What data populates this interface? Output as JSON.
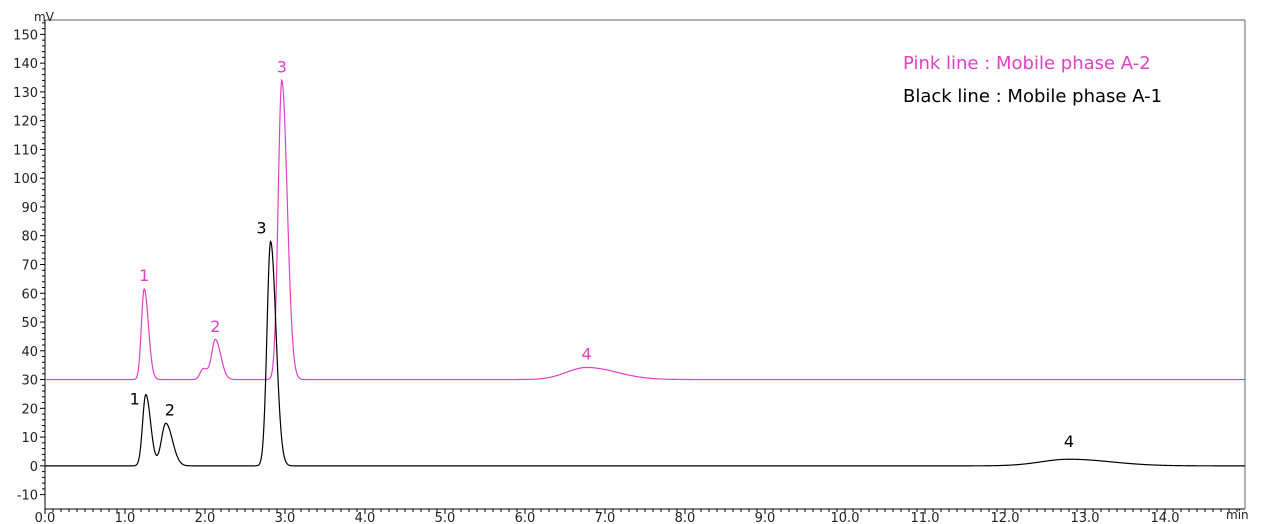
{
  "chart_data": {
    "type": "line",
    "title": "",
    "xlabel": "min",
    "ylabel": "mV",
    "xlim": [
      0.0,
      15.0
    ],
    "ylim": [
      -15,
      155
    ],
    "grid": false,
    "x_ticks": [
      "0.0",
      "1.0",
      "2.0",
      "3.0",
      "4.0",
      "5.0",
      "6.0",
      "7.0",
      "8.0",
      "9.0",
      "10.0",
      "11.0",
      "12.0",
      "13.0",
      "14.0"
    ],
    "y_ticks": [
      "-10",
      "0",
      "10",
      "20",
      "30",
      "40",
      "50",
      "60",
      "70",
      "80",
      "90",
      "100",
      "110",
      "120",
      "130",
      "140",
      "150"
    ],
    "legend": {
      "placement": "top-right",
      "entries": [
        {
          "text": "Pink line : Mobile phase A-2",
          "color": "#e040c8"
        },
        {
          "text": "Black line : Mobile phase A-1",
          "color": "#000000"
        }
      ]
    },
    "series": [
      {
        "color": "#e040c8",
        "baseline": 30,
        "peaks": [
          {
            "label": "1",
            "x": 1.24,
            "height": 61.5,
            "width": 0.035
          },
          {
            "label": "",
            "x": 1.98,
            "height": 33.8,
            "width": 0.04
          },
          {
            "label": "2",
            "x": 2.13,
            "height": 43.8,
            "width": 0.045
          },
          {
            "label": "3",
            "x": 2.96,
            "height": 134.0,
            "width": 0.045
          },
          {
            "label": "4",
            "x": 6.77,
            "height": 34.2,
            "width": 0.25
          }
        ]
      },
      {
        "color": "#000000",
        "baseline": 0,
        "peaks": [
          {
            "label": "1",
            "x": 1.26,
            "height": 24.8,
            "width": 0.04
          },
          {
            "label": "2",
            "x": 1.51,
            "height": 14.8,
            "width": 0.055
          },
          {
            "label": "3",
            "x": 2.82,
            "height": 78.0,
            "width": 0.045
          },
          {
            "label": "4",
            "x": 12.8,
            "height": 2.3,
            "width": 0.35
          }
        ]
      }
    ]
  }
}
